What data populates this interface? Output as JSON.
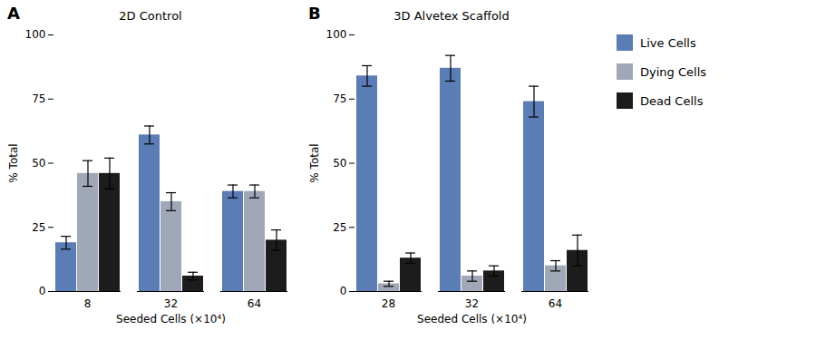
{
  "chart_data": [
    {
      "type": "bar",
      "title": "2D Control",
      "annotations": [
        "A"
      ],
      "categories": [
        "8",
        "32",
        "64"
      ],
      "series": [
        {
          "name": "Live Cells",
          "color": "#5a7db5",
          "values": [
            19,
            61,
            39
          ],
          "errors": [
            2.5,
            3.5,
            2.5
          ]
        },
        {
          "name": "Dying Cells",
          "color": "#a0a8b8",
          "values": [
            46,
            35,
            39
          ],
          "errors": [
            5,
            3.5,
            2.5
          ]
        },
        {
          "name": "Dead Cells",
          "color": "#1c1c1c",
          "values": [
            46,
            6,
            20
          ],
          "errors": [
            6,
            1.5,
            4
          ]
        }
      ],
      "xlabel": "Seeded Cells (×10⁴)",
      "ylabel": "% Total",
      "ylim": [
        0,
        100
      ],
      "yticks": [
        0,
        25,
        50,
        75,
        100
      ],
      "grid": false
    },
    {
      "type": "bar",
      "title": "3D Alvetex Scaffold",
      "annotations": [
        "B"
      ],
      "categories": [
        "28",
        "32",
        "64"
      ],
      "series": [
        {
          "name": "Live Cells",
          "color": "#5a7db5",
          "values": [
            84,
            87,
            74
          ],
          "errors": [
            4,
            5,
            6
          ]
        },
        {
          "name": "Dying Cells",
          "color": "#a0a8b8",
          "values": [
            3,
            6,
            10
          ],
          "errors": [
            1,
            2,
            2
          ]
        },
        {
          "name": "Dead Cells",
          "color": "#1c1c1c",
          "values": [
            13,
            8,
            16
          ],
          "errors": [
            2,
            2,
            6
          ]
        }
      ],
      "xlabel": "Seeded Cells (×10⁴)",
      "ylabel": "% Total",
      "ylim": [
        0,
        100
      ],
      "yticks": [
        0,
        25,
        50,
        75,
        100
      ],
      "grid": false,
      "legend": "right"
    }
  ]
}
